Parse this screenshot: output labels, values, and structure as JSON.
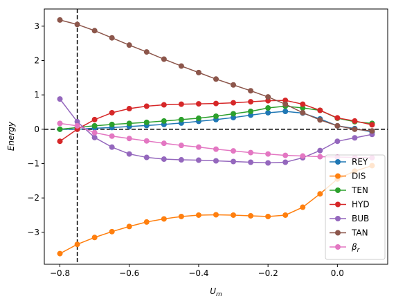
{
  "chart_data": {
    "type": "line",
    "xlabel": "U_m",
    "ylabel": "Energy",
    "xlim": [
      -0.845,
      0.145
    ],
    "ylim": [
      -3.93,
      3.5
    ],
    "xticks": [
      -0.8,
      -0.6,
      -0.4,
      -0.2,
      0.0
    ],
    "xtick_labels": [
      "−0.8",
      "−0.6",
      "−0.4",
      "−0.2",
      "0.0"
    ],
    "yticks": [
      -3,
      -2,
      -1,
      0,
      1,
      2,
      3
    ],
    "ytick_labels": [
      "−3",
      "−2",
      "−1",
      "0",
      "1",
      "2",
      "3"
    ],
    "vline_x": -0.75,
    "hline_y": 0,
    "legend_position": "lower-right",
    "x": [
      -0.8,
      -0.75,
      -0.7,
      -0.65,
      -0.6,
      -0.55,
      -0.5,
      -0.45,
      -0.4,
      -0.35,
      -0.3,
      -0.25,
      -0.2,
      -0.15,
      -0.1,
      -0.05,
      0.0,
      0.05,
      0.1
    ],
    "series": [
      {
        "name": "REY",
        "color": "#1f77b4",
        "values": [
          0.0,
          0.0,
          0.03,
          0.05,
          0.08,
          0.11,
          0.14,
          0.18,
          0.23,
          0.28,
          0.34,
          0.41,
          0.48,
          0.52,
          0.47,
          0.3,
          0.1,
          0.02,
          -0.08
        ]
      },
      {
        "name": "DIS",
        "color": "#ff7f0e",
        "values": [
          -3.62,
          -3.35,
          -3.15,
          -2.98,
          -2.83,
          -2.7,
          -2.61,
          -2.54,
          -2.5,
          -2.49,
          -2.5,
          -2.52,
          -2.54,
          -2.5,
          -2.27,
          -1.88,
          -1.45,
          -1.22,
          -1.06
        ]
      },
      {
        "name": "TEN",
        "color": "#2ca02c",
        "values": [
          0.0,
          0.05,
          0.1,
          0.14,
          0.17,
          0.2,
          0.24,
          0.28,
          0.32,
          0.38,
          0.45,
          0.52,
          0.62,
          0.67,
          0.62,
          0.55,
          0.32,
          0.22,
          0.17
        ]
      },
      {
        "name": "HYD",
        "color": "#d62728",
        "values": [
          -0.35,
          0.0,
          0.28,
          0.48,
          0.6,
          0.67,
          0.71,
          0.73,
          0.74,
          0.75,
          0.77,
          0.8,
          0.83,
          0.84,
          0.73,
          0.55,
          0.33,
          0.24,
          0.13
        ]
      },
      {
        "name": "BUB",
        "color": "#9467bd",
        "values": [
          0.88,
          0.22,
          -0.24,
          -0.52,
          -0.72,
          -0.82,
          -0.87,
          -0.89,
          -0.9,
          -0.92,
          -0.94,
          -0.96,
          -0.98,
          -0.96,
          -0.83,
          -0.62,
          -0.35,
          -0.25,
          -0.15
        ]
      },
      {
        "name": "TAN",
        "color": "#8c564b",
        "values": [
          3.18,
          3.05,
          2.87,
          2.66,
          2.45,
          2.25,
          2.04,
          1.84,
          1.65,
          1.46,
          1.29,
          1.12,
          0.94,
          0.73,
          0.48,
          0.27,
          0.1,
          0.0,
          -0.05
        ]
      },
      {
        "name": "β_r",
        "color": "#e377c2",
        "values": [
          0.17,
          0.1,
          -0.1,
          -0.2,
          -0.27,
          -0.34,
          -0.41,
          -0.47,
          -0.52,
          -0.58,
          -0.63,
          -0.68,
          -0.72,
          -0.76,
          -0.78,
          -0.8,
          -0.81,
          -0.82,
          -0.83
        ]
      }
    ]
  }
}
